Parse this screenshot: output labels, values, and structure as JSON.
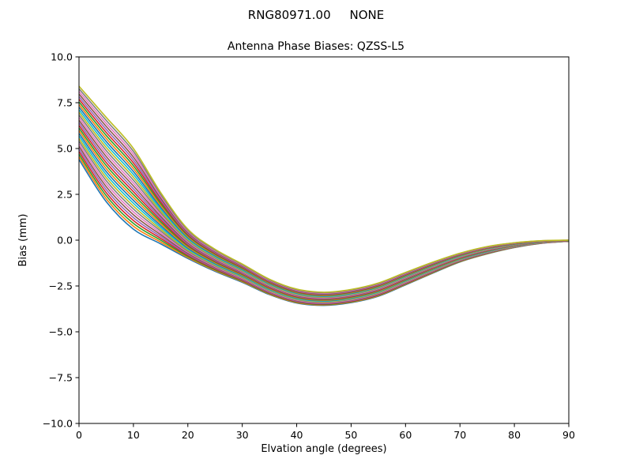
{
  "figure": {
    "background": "#ffffff",
    "title": "RNG80971.00     NONE",
    "axes_title": "Antenna Phase Biases: QZSS-L5"
  },
  "chart_data": {
    "type": "line",
    "title": "RNG80971.00     NONE",
    "subtitle": "Antenna Phase Biases: QZSS-L5",
    "xlabel": "Elvation angle (degrees)",
    "ylabel": "Bias (mm)",
    "xlim": [
      0,
      90
    ],
    "ylim": [
      -10.0,
      10.0
    ],
    "xticks": [
      0,
      10,
      20,
      30,
      40,
      50,
      60,
      70,
      80,
      90
    ],
    "yticks": [
      -10.0,
      -7.5,
      -5.0,
      -2.5,
      0.0,
      2.5,
      5.0,
      7.5,
      10.0
    ],
    "grid": false,
    "legend": "none",
    "x": [
      0,
      5,
      10,
      15,
      20,
      25,
      30,
      35,
      40,
      45,
      50,
      55,
      60,
      65,
      70,
      75,
      80,
      85,
      90
    ],
    "n_curves": 29,
    "mean": [
      6.4,
      4.4,
      2.8,
      1.2,
      -0.2,
      -1.1,
      -1.8,
      -2.55,
      -3.05,
      -3.2,
      -3.05,
      -2.7,
      -2.1,
      -1.5,
      -0.95,
      -0.55,
      -0.27,
      -0.1,
      -0.03
    ],
    "halfwidth": [
      2.0,
      2.3,
      2.2,
      1.4,
      0.8,
      0.6,
      0.5,
      0.42,
      0.38,
      0.36,
      0.36,
      0.36,
      0.34,
      0.3,
      0.24,
      0.2,
      0.13,
      0.07,
      0.03
    ],
    "envelope_top": [
      8.4,
      6.7,
      5.0,
      2.6,
      0.6,
      -0.5,
      -1.3,
      -2.13,
      -2.67,
      -2.84,
      -2.69,
      -2.34,
      -1.76,
      -1.2,
      -0.71,
      -0.35,
      -0.14,
      -0.03,
      0.0
    ],
    "envelope_bottom": [
      4.4,
      2.1,
      0.6,
      -0.2,
      -1.0,
      -1.7,
      -2.3,
      -2.97,
      -3.43,
      -3.56,
      -3.41,
      -3.06,
      -2.44,
      -1.8,
      -1.19,
      -0.75,
      -0.4,
      -0.17,
      -0.06
    ],
    "colors": [
      "#1f77b4",
      "#ff7f0e",
      "#2ca02c",
      "#d62728",
      "#9467bd",
      "#8c564b",
      "#e377c2",
      "#7f7f7f",
      "#bcbd22",
      "#17becf"
    ]
  }
}
